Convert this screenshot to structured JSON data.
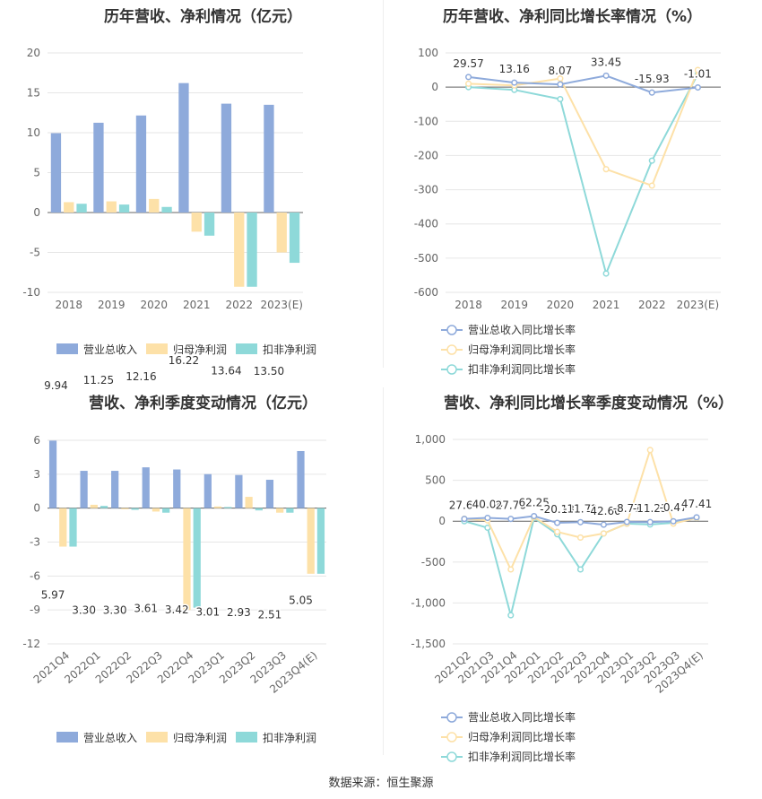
{
  "source": "数据来源：恒生聚源",
  "chart_data": [
    {
      "type": "bar",
      "title": "历年营收、净利情况（亿元）",
      "categories": [
        "2018",
        "2019",
        "2020",
        "2021",
        "2022",
        "2023(E)"
      ],
      "ylim": [
        -10,
        20
      ],
      "yticks": [
        20,
        15,
        10,
        5,
        0,
        -5,
        -10
      ],
      "series": [
        {
          "name": "营业总收入",
          "color": "#8eaadb",
          "values": [
            9.94,
            11.25,
            12.16,
            16.22,
            13.64,
            13.5
          ]
        },
        {
          "name": "归母净利润",
          "color": "#fde1a8",
          "values": [
            1.3,
            1.4,
            1.7,
            -2.4,
            -9.3,
            -5.0
          ]
        },
        {
          "name": "扣非净利润",
          "color": "#8ed9d9",
          "values": [
            1.1,
            1.0,
            0.7,
            -2.9,
            -9.3,
            -6.3
          ]
        }
      ],
      "data_labels": [
        "9.94",
        "11.25",
        "12.16",
        "16.22",
        "13.64",
        "13.50"
      ],
      "legend_position": "bottom"
    },
    {
      "type": "line",
      "title": "历年营收、净利同比增长率情况（%）",
      "categories": [
        "2018",
        "2019",
        "2020",
        "2021",
        "2022",
        "2023(E)"
      ],
      "ylim": [
        -600,
        100
      ],
      "yticks": [
        100,
        0,
        -100,
        -200,
        -300,
        -400,
        -500,
        -600
      ],
      "series": [
        {
          "name": "营业总收入同比增长率",
          "color": "#8eaadb",
          "values": [
            29.57,
            13.16,
            8.07,
            33.45,
            -15.93,
            -1.01
          ]
        },
        {
          "name": "归母净利润同比增长率",
          "color": "#fde1a8",
          "values": [
            10,
            5,
            25,
            -240,
            -288,
            50
          ]
        },
        {
          "name": "扣非净利润同比增长率",
          "color": "#8ed9d9",
          "values": [
            0,
            -8,
            -35,
            -545,
            -215,
            38
          ]
        }
      ],
      "data_labels": [
        "29.57",
        "13.16",
        "8.07",
        "33.45",
        "-15.93",
        "-1.01"
      ],
      "legend_position": "bottom"
    },
    {
      "type": "bar",
      "title": "营收、净利季度变动情况（亿元）",
      "categories": [
        "2021Q4",
        "2022Q1",
        "2022Q2",
        "2022Q3",
        "2022Q4",
        "2023Q1",
        "2023Q2",
        "2023Q3",
        "2023Q4(E)"
      ],
      "ylim": [
        -12,
        6
      ],
      "yticks": [
        6,
        3,
        0,
        -3,
        -6,
        -9,
        -12
      ],
      "series": [
        {
          "name": "营业总收入",
          "color": "#8eaadb",
          "values": [
            5.97,
            3.3,
            3.3,
            3.61,
            3.42,
            3.01,
            2.93,
            2.51,
            5.05
          ]
        },
        {
          "name": "归母净利润",
          "color": "#fde1a8",
          "values": [
            -3.4,
            0.3,
            -0.1,
            -0.3,
            -9.0,
            0.15,
            1.0,
            -0.4,
            -5.8
          ]
        },
        {
          "name": "扣非净利润",
          "color": "#8ed9d9",
          "values": [
            -3.4,
            0.2,
            -0.15,
            -0.4,
            -8.8,
            0.1,
            -0.2,
            -0.4,
            -5.8
          ]
        }
      ],
      "data_labels": [
        "5.97",
        "3.30",
        "3.30",
        "3.61",
        "3.42",
        "3.01",
        "2.93",
        "2.51",
        "5.05"
      ],
      "legend_position": "bottom"
    },
    {
      "type": "line",
      "title": "营收、净利同比增长率季度变动情况（%）",
      "categories": [
        "2021Q2",
        "2021Q3",
        "2021Q4",
        "2022Q1",
        "2022Q2",
        "2022Q3",
        "2022Q4",
        "2023Q1",
        "2023Q2",
        "2023Q3",
        "2023Q4(E)"
      ],
      "ylim": [
        -1500,
        1000
      ],
      "yticks": [
        1000,
        500,
        0,
        -500,
        -1000,
        -1500
      ],
      "ytick_labels": [
        "1,000",
        "500",
        "0",
        "-500",
        "-1,000",
        "-1,500"
      ],
      "series": [
        {
          "name": "营业总收入同比增长率",
          "color": "#8eaadb",
          "values": [
            27.64,
            40.08,
            27.76,
            62.25,
            -20.13,
            -11.72,
            -42.6,
            -8.77,
            -11.23,
            -0.47,
            47.41
          ]
        },
        {
          "name": "归母净利润同比增长率",
          "color": "#fde1a8",
          "values": [
            30,
            10,
            -590,
            50,
            -130,
            -200,
            -150,
            -30,
            870,
            -30,
            40
          ]
        },
        {
          "name": "扣非净利润同比增长率",
          "color": "#8ed9d9",
          "values": [
            0,
            -80,
            -1150,
            40,
            -160,
            -590,
            -150,
            -30,
            -40,
            -20,
            40
          ]
        }
      ],
      "data_labels": [
        "27.64",
        "40.08",
        "27.76",
        "62.25",
        "-20.13",
        "-11.72",
        "-42.60",
        "-8.77",
        "-11.23",
        "-0.47",
        "47.41"
      ],
      "legend_position": "bottom"
    }
  ]
}
